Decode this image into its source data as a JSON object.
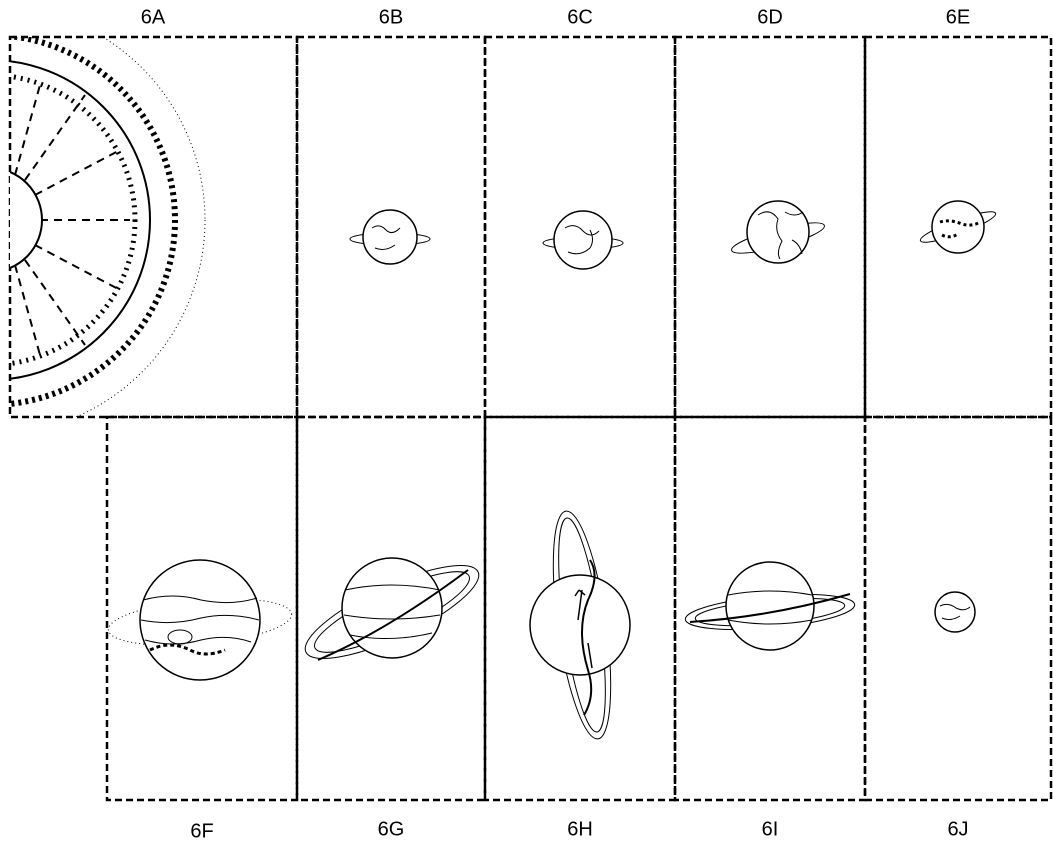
{
  "top_labels": [
    "6A",
    "6B",
    "6C",
    "6D",
    "6E"
  ],
  "bottom_labels": [
    "6F",
    "6G",
    "6H",
    "6I",
    "6J"
  ]
}
